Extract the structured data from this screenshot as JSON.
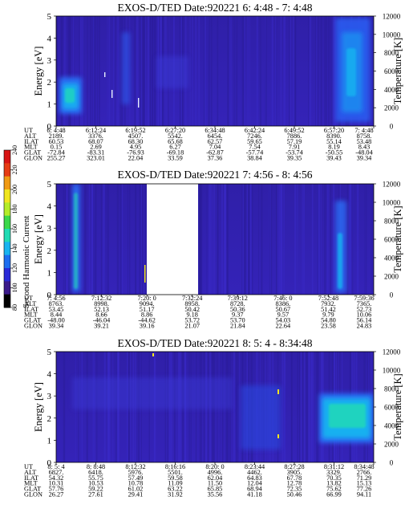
{
  "colorbar": {
    "label": "Second Harmonic Current",
    "ticks": [
      "80",
      "100",
      "120",
      "140",
      "160",
      "180",
      "200",
      "220",
      "240"
    ],
    "colors": [
      "#000000",
      "#3b1a8a",
      "#2a2ad8",
      "#1e6ef0",
      "#19b4f0",
      "#22dcb4",
      "#3cd84a",
      "#b4ec28",
      "#f0e61e",
      "#f09a14",
      "#e63c14",
      "#d81414"
    ]
  },
  "chart_data": [
    {
      "type": "heatmap",
      "title": "EXOS-D/TED   Date:920221   6: 4:48 - 7: 4:48",
      "ylabel": "Energy [eV]",
      "ylabel_right": "Temperature [K]",
      "ylim": [
        0,
        5
      ],
      "yticks": [
        "0",
        "1",
        "2",
        "3",
        "4",
        "5"
      ],
      "ylim_right": [
        0,
        12000
      ],
      "yticks_right": [
        "0",
        "2000",
        "4000",
        "6000",
        "8000",
        "10000",
        "12000"
      ],
      "row_labels": [
        "UT",
        "ALT",
        "ILAT",
        "MLT",
        "GLAT",
        "GLON"
      ],
      "columns": [
        [
          "6: 4:48",
          "2189.",
          "60.53",
          "0.15",
          "-72.84",
          "255.27"
        ],
        [
          "6:12:24",
          "3376.",
          "68.07",
          "2.69",
          "-83.31",
          "323.01"
        ],
        [
          "6:19:52",
          "4507.",
          "68.30",
          "4.95",
          "-76.93",
          "22.04"
        ],
        [
          "6:27:20",
          "5542.",
          "65.68",
          "6.27",
          "-69.18",
          "33.59"
        ],
        [
          "6:34:48",
          "6454.",
          "62.57",
          "7.04",
          "-62.87",
          "37.36"
        ],
        [
          "6:42:24",
          "7246.",
          "59.65",
          "7.54",
          "-57.74",
          "38.84"
        ],
        [
          "6:49:52",
          "7886.",
          "57.19",
          "7.91",
          "-53.74",
          "39.35"
        ],
        [
          "6:57:20",
          "8390.",
          "55.14",
          "8.19",
          "-50.55",
          "39.43"
        ],
        [
          "7: 4:48",
          "8758.",
          "53.48",
          "8.43",
          "-48.04",
          "39.34"
        ]
      ]
    },
    {
      "type": "heatmap",
      "title": "EXOS-D/TED   Date:920221   7: 4:56 - 8: 4:56",
      "ylabel": "Energy [eV]",
      "ylabel_right": "Temperature [K]",
      "ylim": [
        0,
        5
      ],
      "yticks": [
        "0",
        "1",
        "2",
        "3",
        "4",
        "5"
      ],
      "ylim_right": [
        0,
        12000
      ],
      "yticks_right": [
        "0",
        "2000",
        "4000",
        "6000",
        "8000",
        "10000",
        "12000"
      ],
      "row_labels": [
        "UT",
        "ALT",
        "ILAT",
        "MLT",
        "GLAT",
        "GLON"
      ],
      "columns": [
        [
          "7: 4:56",
          "8763.",
          "53.45",
          "8.44",
          "-48.00",
          "39.34"
        ],
        [
          "7:12:32",
          "8998.",
          "52.13",
          "8.66",
          "-46.04",
          "39.21"
        ],
        [
          "7:20: 0",
          "9094.",
          "51.17",
          "8.86",
          "-44.62",
          "39.16"
        ],
        [
          "7:32:24",
          "8958.",
          "50.42",
          "9.18",
          "53.72",
          "21.07"
        ],
        [
          "7:39:12",
          "8728.",
          "50.36",
          "9.37",
          "53.70",
          "21.84"
        ],
        [
          "7:46: 0",
          "8386.",
          "50.67",
          "9.57",
          "54.03",
          "22.64"
        ],
        [
          "7:52:48",
          "7932.",
          "51.42",
          "9.79",
          "54.80",
          "23.58"
        ],
        [
          "7:59:36",
          "7365.",
          "52.73",
          "10.06",
          "56.14",
          "24.83"
        ]
      ]
    },
    {
      "type": "heatmap",
      "title": "EXOS-D/TED   Date:920221   8: 5: 4 - 8:34:48",
      "ylabel": "Energy [eV]",
      "ylabel_right": "Temperature [K]",
      "ylim": [
        0,
        5
      ],
      "yticks": [
        "0",
        "1",
        "2",
        "3",
        "4",
        "5"
      ],
      "ylim_right": [
        0,
        12000
      ],
      "yticks_right": [
        "0",
        "2000",
        "4000",
        "6000",
        "8000",
        "10000",
        "12000"
      ],
      "row_labels": [
        "UT",
        "ALT",
        "ILAT",
        "MLT",
        "GLAT",
        "GLON"
      ],
      "columns": [
        [
          "8: 5: 4",
          "6827.",
          "54.32",
          "10.31",
          "57.76",
          "26.27"
        ],
        [
          "8: 8:48",
          "6418.",
          "55.75",
          "10.53",
          "59.22",
          "27.61"
        ],
        [
          "8:12:32",
          "5976.",
          "57.49",
          "10.78",
          "61.02",
          "29.41"
        ],
        [
          "8:16:16",
          "5501.",
          "59.58",
          "11.09",
          "63.22",
          "31.92"
        ],
        [
          "8:20: 0",
          "4996.",
          "62.04",
          "11.50",
          "65.85",
          "35.56"
        ],
        [
          "8:23:44",
          "4462.",
          "64.83",
          "12.04",
          "68.94",
          "41.18"
        ],
        [
          "8:27:28",
          "3905.",
          "67.78",
          "12.78",
          "72.35",
          "50.46"
        ],
        [
          "8:31:12",
          "3329.",
          "70.35",
          "13.82",
          "75.62",
          "66.99"
        ],
        [
          "8:34:48",
          "2766.",
          "71.29",
          "15.13",
          "77.26",
          "94.11"
        ]
      ]
    }
  ]
}
